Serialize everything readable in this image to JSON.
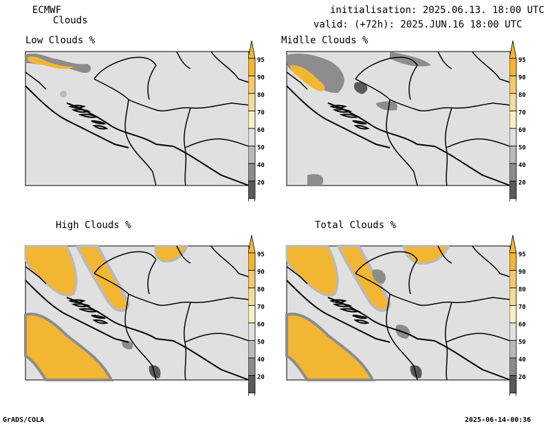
{
  "header": {
    "model": "ECMWF",
    "product": "Clouds",
    "init_line": "initialisation: 2025.06.13. 18:00 UTC",
    "valid_line": "valid: (+72h): 2025.JUN.16 18:00 UTC"
  },
  "panels": [
    {
      "title": "Low Clouds %"
    },
    {
      "title": "Midlle Clouds %"
    },
    {
      "title": "High Clouds %"
    },
    {
      "title": "Total Clouds %"
    }
  ],
  "colorbar": {
    "ticks": [
      "95",
      "90",
      "80",
      "70",
      "60",
      "50",
      "40",
      "20"
    ],
    "colors": {
      "c95": "#f2b632",
      "c90": "#f5c86a",
      "c80": "#f6dc9a",
      "c70": "#f5f1c4",
      "c60": "#e0e0e0",
      "c50": "#b9b9b9",
      "c40": "#8c8c8c",
      "c20": "#5a5a5a"
    }
  },
  "footer": {
    "left": "GrADS/COLA",
    "right": "2025-06-14-00:36"
  }
}
